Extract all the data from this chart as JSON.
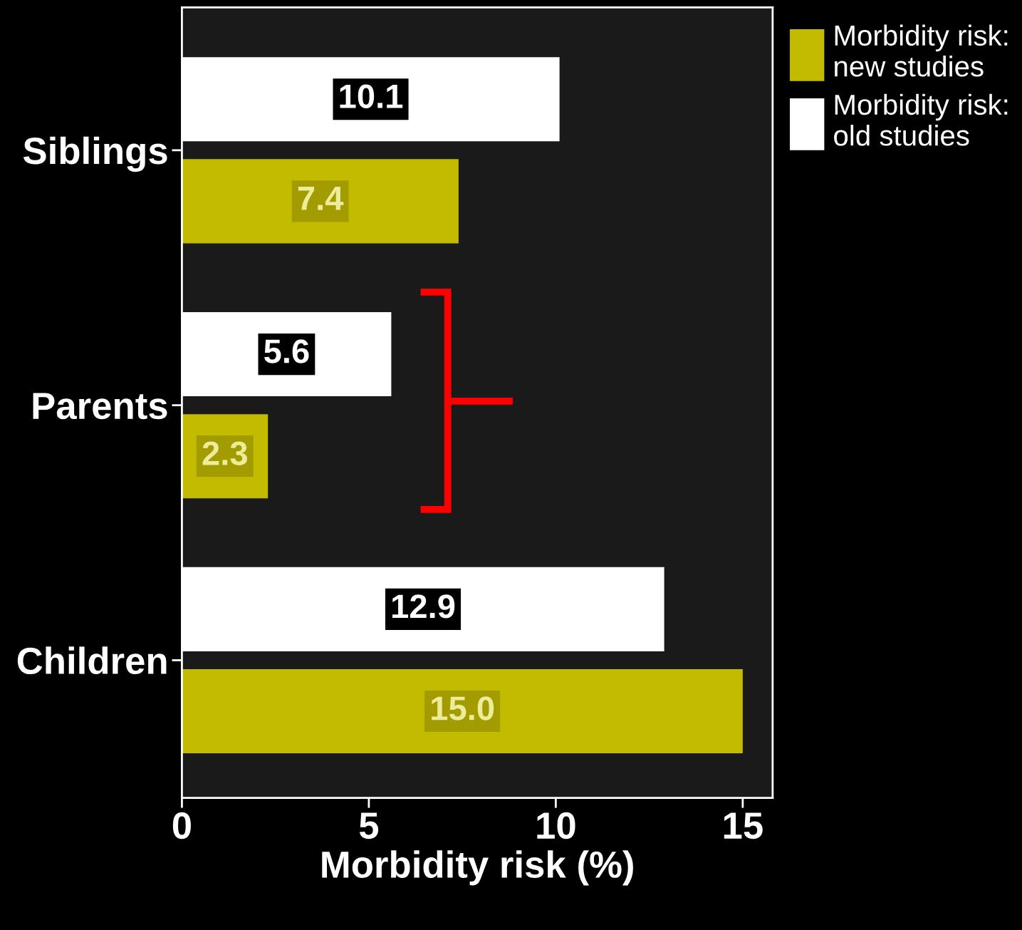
{
  "chart_data": {
    "type": "bar",
    "orientation": "horizontal",
    "xlabel": "Morbidity risk (%)",
    "categories": [
      "Siblings",
      "Parents",
      "Children"
    ],
    "series": [
      {
        "name": "Morbidity risk:\nnew studies",
        "color": "#c2bb00",
        "values": [
          7.4,
          2.3,
          15.0
        ],
        "value_labels": [
          "7.4",
          "2.3",
          "15.0"
        ]
      },
      {
        "name": "Morbidity risk:\nold studies",
        "color": "#ffffff",
        "values": [
          10.1,
          5.6,
          12.9
        ],
        "value_labels": [
          "10.1",
          "5.6",
          "12.9"
        ]
      }
    ],
    "xlim": [
      0,
      15.8
    ],
    "xticks": [
      0,
      5,
      10,
      15
    ],
    "legend": "top right",
    "grid": false
  }
}
